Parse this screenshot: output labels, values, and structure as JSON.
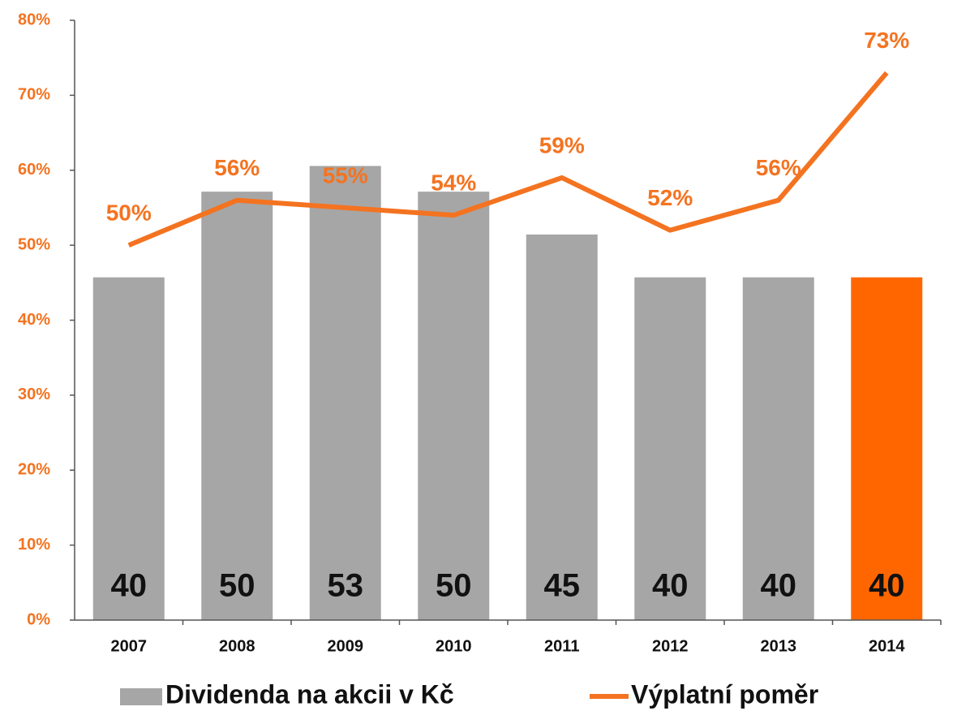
{
  "chart_data": {
    "type": "combo",
    "categories": [
      "2007",
      "2008",
      "2009",
      "2010",
      "2011",
      "2012",
      "2013",
      "2014"
    ],
    "series": [
      {
        "name": "Dividenda na akcii v Kč",
        "type": "bar",
        "axis": "y2",
        "color": "#a6a6a6",
        "colors": [
          "#a6a6a6",
          "#a6a6a6",
          "#a6a6a6",
          "#a6a6a6",
          "#a6a6a6",
          "#a6a6a6",
          "#a6a6a6",
          "#ff6600"
        ],
        "values": [
          40,
          50,
          53,
          50,
          45,
          40,
          40,
          40
        ]
      },
      {
        "name": "Výplatní poměr",
        "type": "line",
        "color": "#f47320",
        "values": [
          50,
          56,
          55,
          54,
          59,
          52,
          56,
          73
        ],
        "value_labels": [
          "50%",
          "56%",
          "55%",
          "54%",
          "59%",
          "52%",
          "56%",
          "73%"
        ]
      }
    ],
    "ylim": [
      0,
      80
    ],
    "yticks": [
      {
        "value": 0,
        "label": "0%"
      },
      {
        "value": 10,
        "label": "10%"
      },
      {
        "value": 20,
        "label": "20%"
      },
      {
        "value": 30,
        "label": "30%"
      },
      {
        "value": 40,
        "label": "40%"
      },
      {
        "value": 50,
        "label": "50%"
      },
      {
        "value": 60,
        "label": "60%"
      },
      {
        "value": 70,
        "label": "70%"
      },
      {
        "value": 80,
        "label": "80%"
      }
    ],
    "y2lim": [
      0,
      70
    ],
    "legend": "bottom"
  }
}
